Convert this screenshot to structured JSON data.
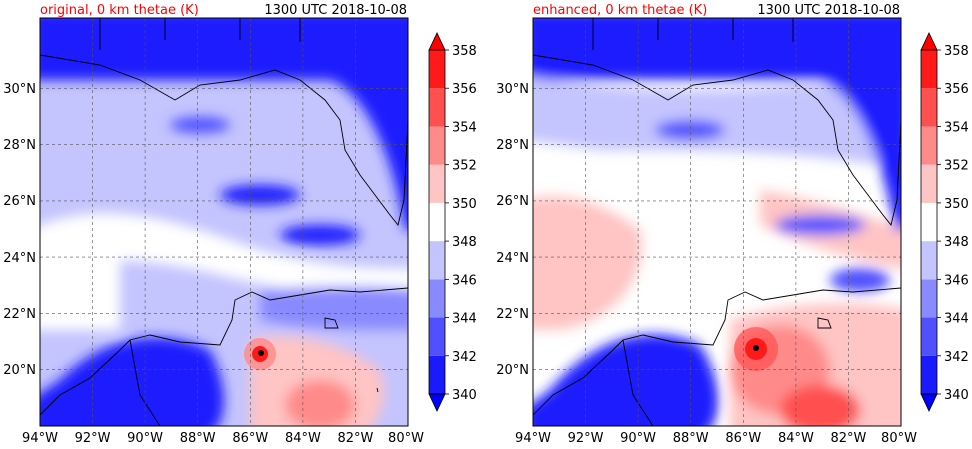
{
  "chart_data": [
    {
      "type": "heatmap",
      "title_left": "original, 0 km thetae (K)",
      "title_right": "1300 UTC 2018-10-08",
      "title_color": "#ff0000",
      "x_ticks": [
        "94°W",
        "92°W",
        "90°W",
        "88°W",
        "86°W",
        "84°W",
        "82°W",
        "80°W"
      ],
      "y_ticks": [
        "20°N",
        "22°N",
        "24°N",
        "26°N",
        "28°N",
        "30°N"
      ],
      "xlim": [
        -94,
        -80
      ],
      "ylim": [
        18,
        32
      ],
      "grid": true,
      "storm_center": {
        "lon": -85.7,
        "lat": 20.6
      }
    },
    {
      "type": "heatmap",
      "title_left": "enhanced, 0 km thetae (K)",
      "title_right": "1300 UTC 2018-10-08",
      "title_color": "#ff0000",
      "x_ticks": [
        "94°W",
        "92°W",
        "90°W",
        "88°W",
        "86°W",
        "84°W",
        "82°W",
        "80°W"
      ],
      "y_ticks": [
        "20°N",
        "22°N",
        "24°N",
        "26°N",
        "28°N",
        "30°N"
      ],
      "xlim": [
        -94,
        -80
      ],
      "ylim": [
        18,
        32
      ],
      "grid": true,
      "storm_center": {
        "lon": -85.6,
        "lat": 20.8
      }
    }
  ],
  "colorbar": {
    "levels": [
      "340",
      "342",
      "344",
      "346",
      "348",
      "350",
      "352",
      "354",
      "356",
      "358"
    ],
    "colors": [
      "#1a1aff",
      "#5050ff",
      "#8a8aff",
      "#c4c4ff",
      "#ffffff",
      "#ffc4c4",
      "#ff8a8a",
      "#ff5050",
      "#ff1a1a"
    ],
    "under_color": "#0000ff",
    "over_color": "#ff0000"
  }
}
